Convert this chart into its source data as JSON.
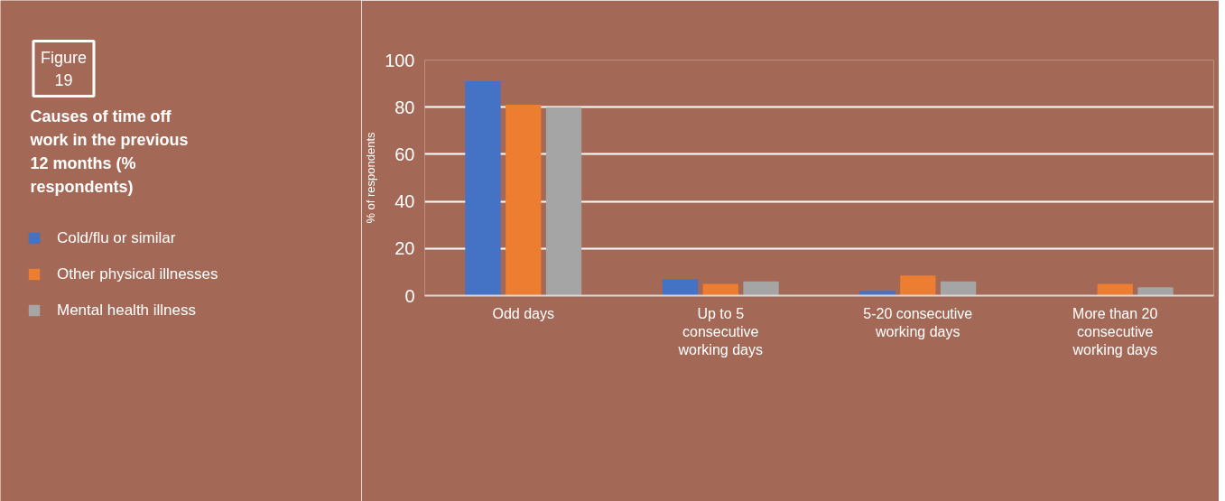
{
  "chart_data": {
    "type": "bar",
    "title": "Causes of time off work in the previous 12 months (% respondents)",
    "annotations": [
      "Figure 19"
    ],
    "ylabel": "% of respondents",
    "categories": [
      "Odd days",
      "Up to 5 consecutive working days",
      "5-20 consecutive working days",
      "More than 20 consecutive working days"
    ],
    "series": [
      {
        "name": "Cold/flu or similar",
        "color": "#4472c4",
        "values": [
          91,
          7,
          2,
          0
        ]
      },
      {
        "name": "Other physical illnesses",
        "color": "#ed7d31",
        "values": [
          81,
          5,
          8.5,
          5
        ]
      },
      {
        "name": "Mental health illness",
        "color": "#a5a5a5",
        "values": [
          80,
          6,
          6,
          3.5
        ]
      }
    ],
    "ylim": [
      0,
      100
    ],
    "yticks": [
      0,
      20,
      40,
      60,
      80,
      100
    ],
    "grid": "y",
    "legend": "left"
  }
}
